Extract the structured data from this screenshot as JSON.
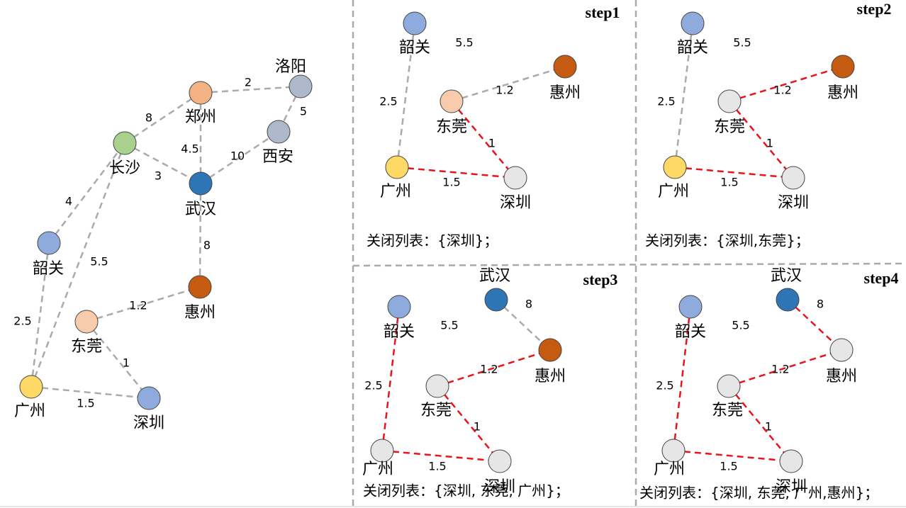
{
  "graph": {
    "nodes": [
      "洛阳",
      "郑州",
      "西安",
      "长沙",
      "武汉",
      "韶关",
      "惠州",
      "东莞",
      "广州",
      "深圳"
    ],
    "weights": [
      2,
      5,
      8,
      4.5,
      10,
      3,
      5.5,
      4,
      8,
      2.5,
      1.2,
      1,
      1.5
    ]
  },
  "panels": [
    {
      "title": "step1",
      "nodes": [
        "韶关",
        "惠州",
        "东莞",
        "广州",
        "深圳"
      ],
      "weights": [
        5.5,
        2.5,
        1.2,
        1,
        1.5
      ],
      "closed_list": "关闭列表：{深圳}；"
    },
    {
      "title": "step2",
      "nodes": [
        "韶关",
        "惠州",
        "东莞",
        "广州",
        "深圳"
      ],
      "weights": [
        5.5,
        2.5,
        1.2,
        1,
        1.5
      ],
      "closed_list": "关闭列表：{深圳,东莞}；"
    },
    {
      "title": "step3",
      "nodes": [
        "武汉",
        "韶关",
        "惠州",
        "东莞",
        "广州",
        "深圳"
      ],
      "weights": [
        8,
        5.5,
        2.5,
        1.2,
        1,
        1.5
      ],
      "closed_list": "关闭列表：{深圳, 东莞, 广州}；"
    },
    {
      "title": "step4",
      "nodes": [
        "武汉",
        "韶关",
        "惠州",
        "东莞",
        "广州",
        "深圳"
      ],
      "weights": [
        8,
        5.5,
        2.5,
        1.2,
        1,
        1.5
      ],
      "closed_list": "关闭列表：{深圳, 东莞, 广州,惠州}；"
    }
  ]
}
